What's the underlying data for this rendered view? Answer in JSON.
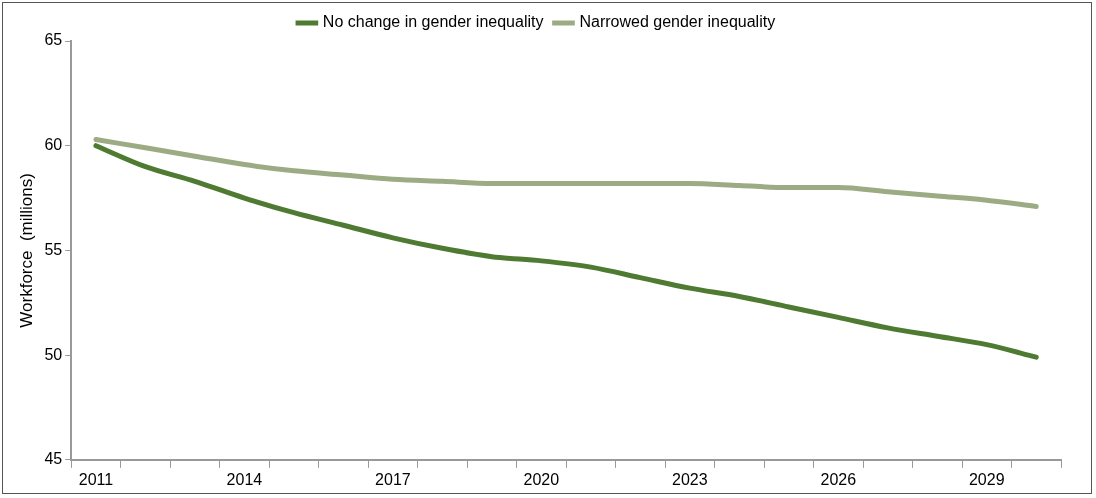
{
  "chart_data": {
    "type": "line",
    "ylabel": "Workforce  (millions)",
    "categories": [
      "2011",
      null,
      null,
      "2014",
      null,
      null,
      "2017",
      null,
      null,
      "2020",
      null,
      null,
      "2023",
      null,
      null,
      "2026",
      null,
      null,
      "2029",
      null
    ],
    "series": [
      {
        "name": "No change in gender inequality",
        "color": "#4e7a32",
        "values": [
          60.0,
          59.0,
          58.3,
          57.5,
          56.8,
          56.2,
          55.6,
          55.1,
          54.7,
          54.5,
          54.2,
          53.7,
          53.2,
          52.8,
          52.3,
          51.8,
          51.3,
          50.9,
          50.5,
          49.9
        ]
      },
      {
        "name": "Narrowed gender inequality",
        "color": "#9cab84",
        "values": [
          60.3,
          59.9,
          59.5,
          59.1,
          58.8,
          58.6,
          58.4,
          58.3,
          58.2,
          58.2,
          58.2,
          58.2,
          58.2,
          58.1,
          58.0,
          58.0,
          57.8,
          57.6,
          57.4,
          57.1
        ]
      }
    ],
    "ylim": [
      45,
      65
    ],
    "yticks": [
      45,
      50,
      55,
      60,
      65
    ],
    "grid": false,
    "legend": "top",
    "marker": "none",
    "line_style": "solid"
  }
}
